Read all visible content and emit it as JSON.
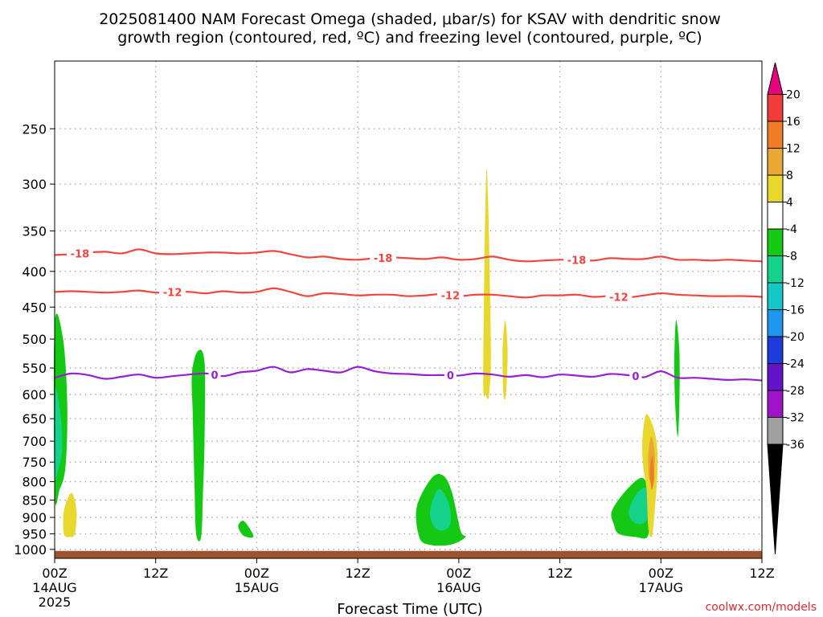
{
  "title": {
    "line1": "2025081400 NAM Forecast Omega (shaded, μbar/s) for KSAV with dendritic snow",
    "line2": "growth region (contoured, red, ºC) and freezing level (contoured, purple, ºC)"
  },
  "credit": "coolwx.com/models",
  "colors": {
    "temp_contour": "#f2453d",
    "freezing_contour": "#9a1fd0",
    "ground": "#a0522d",
    "grid": "#9a9a9a"
  },
  "chart_data": {
    "type": "heatmap",
    "xlabel": "Forecast Time (UTC)",
    "ylabel": "",
    "x_unit": "forecast hour from 2025081400",
    "xlim": [
      0,
      84
    ],
    "ylim": [
      1030,
      200
    ],
    "y_scale": "log",
    "grid": true,
    "y_ticks": [
      250,
      300,
      350,
      400,
      450,
      500,
      550,
      600,
      650,
      700,
      750,
      800,
      850,
      900,
      950,
      1000
    ],
    "x_ticks": [
      {
        "hour": 0,
        "label": "00Z",
        "date": "14AUG",
        "year": "2025"
      },
      {
        "hour": 12,
        "label": "12Z",
        "date": "",
        "year": ""
      },
      {
        "hour": 24,
        "label": "00Z",
        "date": "15AUG",
        "year": ""
      },
      {
        "hour": 36,
        "label": "12Z",
        "date": "",
        "year": ""
      },
      {
        "hour": 48,
        "label": "00Z",
        "date": "16AUG",
        "year": ""
      },
      {
        "hour": 60,
        "label": "12Z",
        "date": "",
        "year": ""
      },
      {
        "hour": 72,
        "label": "00Z",
        "date": "17AUG",
        "year": ""
      },
      {
        "hour": 84,
        "label": "12Z",
        "date": "",
        "year": ""
      }
    ],
    "colorbar": {
      "levels": [
        20,
        16,
        12,
        8,
        4,
        -4,
        -8,
        -12,
        -16,
        -20,
        -24,
        -28,
        -32,
        -36
      ],
      "labels": [
        "20",
        "16",
        "12",
        "8",
        "4",
        "-4",
        "-8",
        "-12",
        "-16",
        "-20",
        "-24",
        "-28",
        "-32",
        "-36"
      ],
      "colors": [
        "#e8007d",
        "#f23c3c",
        "#f07c28",
        "#e8a832",
        "#e8d82e",
        "#ffffff",
        "#14c814",
        "#14d28c",
        "#14c8c8",
        "#1e96f0",
        "#1e3cdc",
        "#6414c8",
        "#a014c8",
        "#a0a0a0",
        "#000000"
      ]
    },
    "contours": [
      {
        "name": "-18",
        "color": "#f2453d",
        "label_hours": [
          3,
          39,
          62
        ],
        "points": [
          [
            0,
            379
          ],
          [
            2,
            378
          ],
          [
            4,
            376
          ],
          [
            6,
            375
          ],
          [
            8,
            377
          ],
          [
            10,
            372
          ],
          [
            12,
            377
          ],
          [
            14,
            378
          ],
          [
            16,
            377
          ],
          [
            18,
            376
          ],
          [
            20,
            376
          ],
          [
            22,
            377
          ],
          [
            24,
            376
          ],
          [
            26,
            374
          ],
          [
            28,
            378
          ],
          [
            30,
            382
          ],
          [
            32,
            381
          ],
          [
            34,
            384
          ],
          [
            36,
            385
          ],
          [
            38,
            383
          ],
          [
            40,
            382
          ],
          [
            42,
            383
          ],
          [
            44,
            384
          ],
          [
            46,
            382
          ],
          [
            48,
            385
          ],
          [
            50,
            384
          ],
          [
            52,
            381
          ],
          [
            54,
            385
          ],
          [
            56,
            387
          ],
          [
            58,
            386
          ],
          [
            60,
            385
          ],
          [
            62,
            385
          ],
          [
            64,
            386
          ],
          [
            66,
            383
          ],
          [
            68,
            384
          ],
          [
            70,
            384
          ],
          [
            72,
            381
          ],
          [
            74,
            385
          ],
          [
            76,
            385
          ],
          [
            78,
            386
          ],
          [
            80,
            385
          ],
          [
            82,
            386
          ],
          [
            84,
            387
          ]
        ]
      },
      {
        "name": "-12",
        "color": "#f2453d",
        "label_hours": [
          14,
          47,
          67
        ],
        "points": [
          [
            0,
            428
          ],
          [
            2,
            427
          ],
          [
            4,
            428
          ],
          [
            6,
            429
          ],
          [
            8,
            428
          ],
          [
            10,
            426
          ],
          [
            12,
            429
          ],
          [
            14,
            428
          ],
          [
            16,
            428
          ],
          [
            18,
            430
          ],
          [
            20,
            427
          ],
          [
            22,
            429
          ],
          [
            24,
            428
          ],
          [
            26,
            423
          ],
          [
            28,
            428
          ],
          [
            30,
            434
          ],
          [
            32,
            430
          ],
          [
            34,
            431
          ],
          [
            36,
            433
          ],
          [
            38,
            432
          ],
          [
            40,
            432
          ],
          [
            42,
            434
          ],
          [
            44,
            433
          ],
          [
            46,
            431
          ],
          [
            48,
            434
          ],
          [
            50,
            432
          ],
          [
            52,
            432
          ],
          [
            54,
            434
          ],
          [
            56,
            436
          ],
          [
            58,
            433
          ],
          [
            60,
            433
          ],
          [
            62,
            432
          ],
          [
            64,
            435
          ],
          [
            66,
            434
          ],
          [
            68,
            436
          ],
          [
            70,
            433
          ],
          [
            72,
            430
          ],
          [
            74,
            432
          ],
          [
            76,
            433
          ],
          [
            78,
            434
          ],
          [
            80,
            434
          ],
          [
            82,
            434
          ],
          [
            84,
            435
          ]
        ]
      },
      {
        "name": "0",
        "color": "#9a1fd0",
        "label_hours": [
          19,
          47,
          69
        ],
        "points": [
          [
            0,
            568
          ],
          [
            2,
            560
          ],
          [
            4,
            563
          ],
          [
            6,
            570
          ],
          [
            8,
            566
          ],
          [
            10,
            562
          ],
          [
            12,
            568
          ],
          [
            14,
            565
          ],
          [
            16,
            562
          ],
          [
            18,
            560
          ],
          [
            20,
            565
          ],
          [
            22,
            558
          ],
          [
            24,
            555
          ],
          [
            26,
            548
          ],
          [
            28,
            558
          ],
          [
            30,
            552
          ],
          [
            32,
            555
          ],
          [
            34,
            558
          ],
          [
            36,
            548
          ],
          [
            38,
            556
          ],
          [
            40,
            560
          ],
          [
            42,
            561
          ],
          [
            44,
            563
          ],
          [
            46,
            563
          ],
          [
            48,
            564
          ],
          [
            50,
            560
          ],
          [
            52,
            562
          ],
          [
            54,
            566
          ],
          [
            56,
            563
          ],
          [
            58,
            567
          ],
          [
            60,
            562
          ],
          [
            62,
            564
          ],
          [
            64,
            566
          ],
          [
            66,
            561
          ],
          [
            68,
            563
          ],
          [
            70,
            567
          ],
          [
            72,
            556
          ],
          [
            74,
            568
          ],
          [
            76,
            568
          ],
          [
            78,
            570
          ],
          [
            80,
            572
          ],
          [
            82,
            571
          ],
          [
            84,
            573
          ]
        ]
      }
    ],
    "omega_features": [
      {
        "name": "downward-motion -4 to -8",
        "color": "#14c814",
        "shape": [
          [
            0,
            476
          ],
          [
            1,
            500
          ],
          [
            1.5,
            620
          ],
          [
            1.3,
            760
          ],
          [
            0.6,
            820
          ],
          [
            0,
            830
          ]
        ]
      },
      {
        "name": "downward-motion -8 to -12",
        "color": "#14d28c",
        "shape": [
          [
            0,
            590
          ],
          [
            0.7,
            640
          ],
          [
            0.9,
            720
          ],
          [
            0.4,
            770
          ],
          [
            0,
            780
          ]
        ]
      },
      {
        "name": "upward-motion 4 to 8",
        "color": "#e8d82e",
        "shape": [
          [
            1.1,
            880
          ],
          [
            2,
            830
          ],
          [
            2.6,
            880
          ],
          [
            2.4,
            950
          ],
          [
            1.8,
            960
          ],
          [
            1.1,
            950
          ]
        ]
      },
      {
        "name": "downward-motion -4 to -8",
        "color": "#14c814",
        "shape": [
          [
            16.3,
            560
          ],
          [
            17,
            520
          ],
          [
            17.8,
            540
          ],
          [
            17.8,
            700
          ],
          [
            17.6,
            840
          ],
          [
            17.4,
            960
          ],
          [
            16.8,
            950
          ],
          [
            16.6,
            800
          ],
          [
            16.4,
            640
          ]
        ]
      },
      {
        "name": "downward-motion -4 to -8",
        "color": "#14c814",
        "shape": [
          [
            21.8,
            925
          ],
          [
            22.4,
            910
          ],
          [
            23.2,
            935
          ],
          [
            23.6,
            960
          ],
          [
            22.8,
            960
          ],
          [
            22.2,
            950
          ]
        ]
      },
      {
        "name": "upward-motion 4 to 8",
        "color": "#e8d82e",
        "shape": [
          [
            50.9,
            560
          ],
          [
            51.3,
            285
          ],
          [
            51.8,
            500
          ],
          [
            51.6,
            600
          ],
          [
            51.2,
            600
          ]
        ]
      },
      {
        "name": "upward-motion 4 to 8",
        "color": "#e8d82e",
        "shape": [
          [
            53.2,
            520
          ],
          [
            53.5,
            470
          ],
          [
            53.8,
            520
          ],
          [
            53.6,
            600
          ],
          [
            53.3,
            600
          ]
        ]
      },
      {
        "name": "downward-motion -4 to -8",
        "color": "#14c814",
        "shape": [
          [
            43,
            870
          ],
          [
            44.8,
            790
          ],
          [
            46.2,
            785
          ],
          [
            47.2,
            830
          ],
          [
            48.2,
            940
          ],
          [
            48.8,
            960
          ],
          [
            47,
            985
          ],
          [
            44.5,
            985
          ],
          [
            43.3,
            960
          ]
        ]
      },
      {
        "name": "downward-motion -8 to -12",
        "color": "#14d28c",
        "shape": [
          [
            44.6,
            880
          ],
          [
            45.6,
            820
          ],
          [
            46.8,
            860
          ],
          [
            47,
            920
          ],
          [
            46,
            940
          ],
          [
            45,
            925
          ]
        ]
      },
      {
        "name": "downward-motion -4 to -8",
        "color": "#14c814",
        "shape": [
          [
            66.2,
            880
          ],
          [
            68,
            820
          ],
          [
            69.8,
            790
          ],
          [
            70.6,
            830
          ],
          [
            70.6,
            900
          ],
          [
            70.4,
            960
          ],
          [
            69,
            960
          ],
          [
            67,
            950
          ],
          [
            66.4,
            920
          ]
        ]
      },
      {
        "name": "downward-motion -8 to -12",
        "color": "#14d28c",
        "shape": [
          [
            68.2,
            880
          ],
          [
            69.2,
            830
          ],
          [
            70.4,
            820
          ],
          [
            70.4,
            900
          ],
          [
            69.6,
            920
          ],
          [
            68.6,
            910
          ]
        ]
      },
      {
        "name": "upward-motion 4 to 8",
        "color": "#e8d82e",
        "shape": [
          [
            69.8,
            700
          ],
          [
            70.3,
            640
          ],
          [
            71.4,
            690
          ],
          [
            71.6,
            770
          ],
          [
            71.2,
            900
          ],
          [
            70.9,
            960
          ],
          [
            70.5,
            930
          ],
          [
            70.3,
            820
          ],
          [
            69.9,
            760
          ]
        ]
      },
      {
        "name": "upward-motion 8 to 12",
        "color": "#e8a832",
        "shape": [
          [
            70.5,
            730
          ],
          [
            70.9,
            690
          ],
          [
            71.3,
            740
          ],
          [
            71,
            800
          ],
          [
            70.6,
            790
          ]
        ]
      },
      {
        "name": "upward-motion 12 to 16",
        "color": "#f07c28",
        "shape": [
          [
            70.7,
            770
          ],
          [
            71,
            735
          ],
          [
            71.2,
            790
          ],
          [
            70.9,
            820
          ]
        ]
      },
      {
        "name": "downward-motion -4 to -8",
        "color": "#14c814",
        "shape": [
          [
            73.6,
            540
          ],
          [
            73.8,
            470
          ],
          [
            74.2,
            520
          ],
          [
            74.2,
            620
          ],
          [
            74,
            690
          ],
          [
            73.7,
            620
          ]
        ]
      }
    ]
  }
}
